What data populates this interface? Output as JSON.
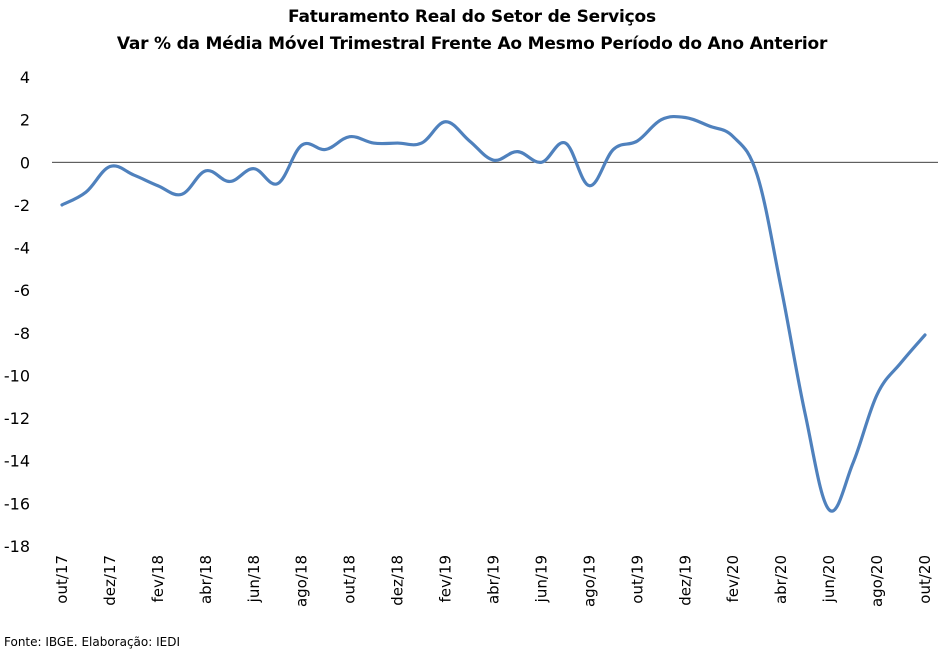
{
  "chart_data": {
    "type": "line",
    "title": "Faturamento Real do Setor de Serviços",
    "subtitle": "Var % da Média Móvel Trimestral Frente Ao Mesmo Período do Ano Anterior",
    "xlabel": "",
    "ylabel": "",
    "ylim": [
      -18,
      4
    ],
    "yticks": [
      4,
      2,
      0,
      -2,
      -4,
      -6,
      -8,
      -10,
      -12,
      -14,
      -16,
      -18
    ],
    "grid": false,
    "legend": "none",
    "x": [
      "out/17",
      "nov/17",
      "dez/17",
      "jan/18",
      "fev/18",
      "mar/18",
      "abr/18",
      "mai/18",
      "jun/18",
      "jul/18",
      "ago/18",
      "set/18",
      "out/18",
      "nov/18",
      "dez/18",
      "jan/19",
      "fev/19",
      "mar/19",
      "abr/19",
      "mai/19",
      "jun/19",
      "jul/19",
      "ago/19",
      "set/19",
      "out/19",
      "nov/19",
      "dez/19",
      "jan/20",
      "fev/20",
      "mar/20",
      "abr/20",
      "mai/20",
      "jun/20",
      "jul/20",
      "ago/20",
      "set/20",
      "out/20"
    ],
    "xtick_labels": [
      "out/17",
      "dez/17",
      "fev/18",
      "abr/18",
      "jun/18",
      "ago/18",
      "out/18",
      "dez/18",
      "fev/19",
      "abr/19",
      "jun/19",
      "ago/19",
      "out/19",
      "dez/19",
      "fev/20",
      "abr/20",
      "jun/20",
      "ago/20",
      "out/20"
    ],
    "series": [
      {
        "color": "#4F81BD",
        "values": [
          -2.0,
          -1.4,
          -0.2,
          -0.6,
          -1.1,
          -1.5,
          -0.4,
          -0.9,
          -0.3,
          -1.0,
          0.8,
          0.6,
          1.2,
          0.9,
          0.9,
          0.9,
          1.9,
          1.0,
          0.1,
          0.5,
          0.0,
          0.9,
          -1.1,
          0.6,
          1.0,
          2.0,
          2.1,
          1.7,
          1.2,
          -0.6,
          -5.9,
          -11.8,
          -16.3,
          -14.1,
          -10.9,
          -9.4,
          -8.1
        ]
      }
    ],
    "zero_line_color": "#000000"
  },
  "footer": {
    "source": "Fonte: IBGE. Elaboração: IEDI"
  }
}
